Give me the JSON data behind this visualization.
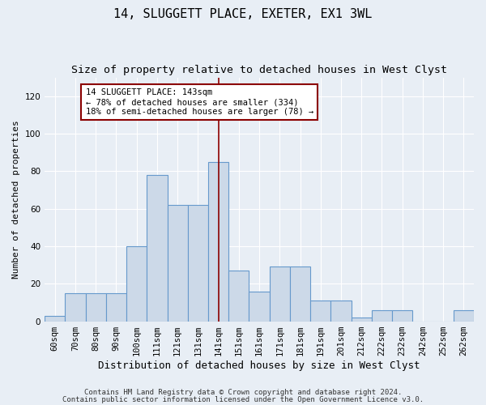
{
  "title": "14, SLUGGETT PLACE, EXETER, EX1 3WL",
  "subtitle": "Size of property relative to detached houses in West Clyst",
  "xlabel": "Distribution of detached houses by size in West Clyst",
  "ylabel": "Number of detached properties",
  "categories": [
    "60sqm",
    "70sqm",
    "80sqm",
    "90sqm",
    "100sqm",
    "111sqm",
    "121sqm",
    "131sqm",
    "141sqm",
    "151sqm",
    "161sqm",
    "171sqm",
    "181sqm",
    "191sqm",
    "201sqm",
    "212sqm",
    "222sqm",
    "232sqm",
    "242sqm",
    "252sqm",
    "262sqm"
  ],
  "values": [
    3,
    15,
    15,
    15,
    40,
    78,
    62,
    62,
    85,
    27,
    16,
    29,
    29,
    11,
    11,
    2,
    6,
    6,
    0,
    0,
    6
  ],
  "bar_color": "#ccd9e8",
  "bar_edgecolor": "#6699cc",
  "vline_x": 8,
  "vline_color": "#8b0000",
  "annotation_text": "14 SLUGGETT PLACE: 143sqm\n← 78% of detached houses are smaller (334)\n18% of semi-detached houses are larger (78) →",
  "annotation_box_color": "#ffffff",
  "annotation_box_edgecolor": "#8b0000",
  "ylim": [
    0,
    130
  ],
  "yticks": [
    0,
    20,
    40,
    60,
    80,
    100,
    120
  ],
  "footer1": "Contains HM Land Registry data © Crown copyright and database right 2024.",
  "footer2": "Contains public sector information licensed under the Open Government Licence v3.0.",
  "background_color": "#e8eef5",
  "plot_bg_color": "#e8eef5",
  "title_fontsize": 11,
  "subtitle_fontsize": 9.5,
  "xlabel_fontsize": 9,
  "ylabel_fontsize": 8,
  "tick_fontsize": 7.5,
  "footer_fontsize": 6.5,
  "annotation_fontsize": 7.5
}
